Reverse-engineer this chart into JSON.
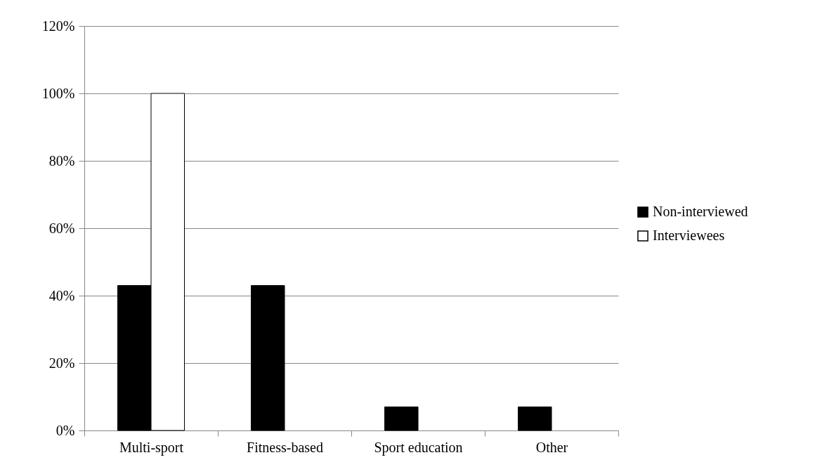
{
  "chart_data": {
    "type": "bar",
    "categories": [
      "Multi-sport",
      "Fitness-based",
      "Sport education",
      "Other"
    ],
    "series": [
      {
        "name": "Non-interviewed",
        "color": "#000000",
        "values": [
          43,
          43,
          7,
          7
        ]
      },
      {
        "name": "Interviewees",
        "color": "#ffffff",
        "values": [
          100,
          null,
          null,
          null
        ]
      }
    ],
    "ylim": [
      0,
      120
    ],
    "yticks": [
      {
        "value": 0,
        "label": "0%"
      },
      {
        "value": 20,
        "label": "20%"
      },
      {
        "value": 40,
        "label": "40%"
      },
      {
        "value": 60,
        "label": "60%"
      },
      {
        "value": 80,
        "label": "80%"
      },
      {
        "value": 100,
        "label": "100%"
      },
      {
        "value": 120,
        "label": "120%"
      }
    ],
    "grid": "y",
    "legend": "right"
  }
}
